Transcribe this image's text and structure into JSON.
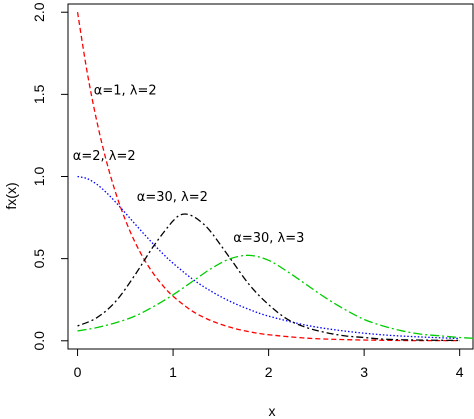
{
  "chart_data": {
    "type": "line",
    "title": "",
    "xlabel": "x",
    "ylabel": "fx(x)",
    "xlim": [
      -0.1,
      4.15
    ],
    "ylim": [
      -0.05,
      2.05
    ],
    "x_ticks": [
      0,
      1,
      2,
      3,
      4
    ],
    "y_ticks": [
      0.0,
      0.5,
      1.0,
      1.5,
      2.0
    ],
    "x_tick_labels": [
      "0",
      "1",
      "2",
      "3",
      "4"
    ],
    "y_tick_labels": [
      "0.0",
      "0.5",
      "1.0",
      "1.5",
      "2.0"
    ],
    "grid": false,
    "legend": "none",
    "series": [
      {
        "color": "#ff0000",
        "dash": "dashed",
        "x": [
          0,
          0.1,
          0.2,
          0.3,
          0.4,
          0.5,
          0.6,
          0.7,
          0.8,
          0.9,
          1.0,
          1.2,
          1.4,
          1.6,
          1.8,
          2.0,
          2.4,
          2.8,
          3.2,
          3.6,
          4.0
        ],
        "values": [
          2.0,
          1.637,
          1.341,
          1.098,
          0.899,
          0.736,
          0.602,
          0.493,
          0.404,
          0.331,
          0.271,
          0.181,
          0.122,
          0.082,
          0.055,
          0.037,
          0.016,
          0.007,
          0.003,
          0.001,
          0.001
        ]
      },
      {
        "color": "#0000ff",
        "dash": "dotted",
        "x": [
          0,
          0.1,
          0.2,
          0.3,
          0.4,
          0.5,
          0.6,
          0.7,
          0.8,
          0.9,
          1.0,
          1.2,
          1.4,
          1.6,
          1.8,
          2.0,
          2.4,
          2.8,
          3.2,
          3.6,
          4.0
        ],
        "values": [
          1.0,
          0.987,
          0.953,
          0.903,
          0.843,
          0.778,
          0.712,
          0.647,
          0.585,
          0.526,
          0.472,
          0.377,
          0.301,
          0.239,
          0.19,
          0.15,
          0.094,
          0.059,
          0.036,
          0.023,
          0.014
        ]
      },
      {
        "color": "#000000",
        "dash": "dotdash",
        "x": [
          0,
          0.2,
          0.4,
          0.6,
          0.8,
          1.0,
          1.1,
          1.2,
          1.3,
          1.4,
          1.6,
          1.8,
          2.0,
          2.2,
          2.4,
          2.6,
          2.8,
          3.0,
          3.2,
          3.5,
          4.0
        ],
        "values": [
          0.09,
          0.14,
          0.24,
          0.4,
          0.58,
          0.73,
          0.77,
          0.76,
          0.72,
          0.66,
          0.5,
          0.34,
          0.22,
          0.13,
          0.08,
          0.05,
          0.03,
          0.02,
          0.01,
          0.005,
          0.002
        ]
      },
      {
        "color": "#00cc00",
        "dash": "longdash-dot",
        "x": [
          0,
          0.2,
          0.4,
          0.6,
          0.8,
          1.0,
          1.2,
          1.4,
          1.6,
          1.8,
          2.0,
          2.2,
          2.4,
          2.6,
          2.8,
          3.0,
          3.2,
          3.4,
          3.6,
          3.8,
          4.0,
          4.15
        ],
        "values": [
          0.06,
          0.08,
          0.11,
          0.15,
          0.21,
          0.28,
          0.36,
          0.44,
          0.5,
          0.52,
          0.49,
          0.42,
          0.34,
          0.26,
          0.19,
          0.13,
          0.09,
          0.06,
          0.04,
          0.03,
          0.02,
          0.015
        ]
      }
    ],
    "annotations": [
      {
        "text": "α=1, λ=2",
        "x": 0.17,
        "y": 1.5
      },
      {
        "text": "α=2, λ=2",
        "x": -0.05,
        "y": 1.1
      },
      {
        "text": "α=30, λ=2",
        "x": 0.62,
        "y": 0.85
      },
      {
        "text": "α=30, λ=3",
        "x": 1.63,
        "y": 0.6
      }
    ]
  }
}
